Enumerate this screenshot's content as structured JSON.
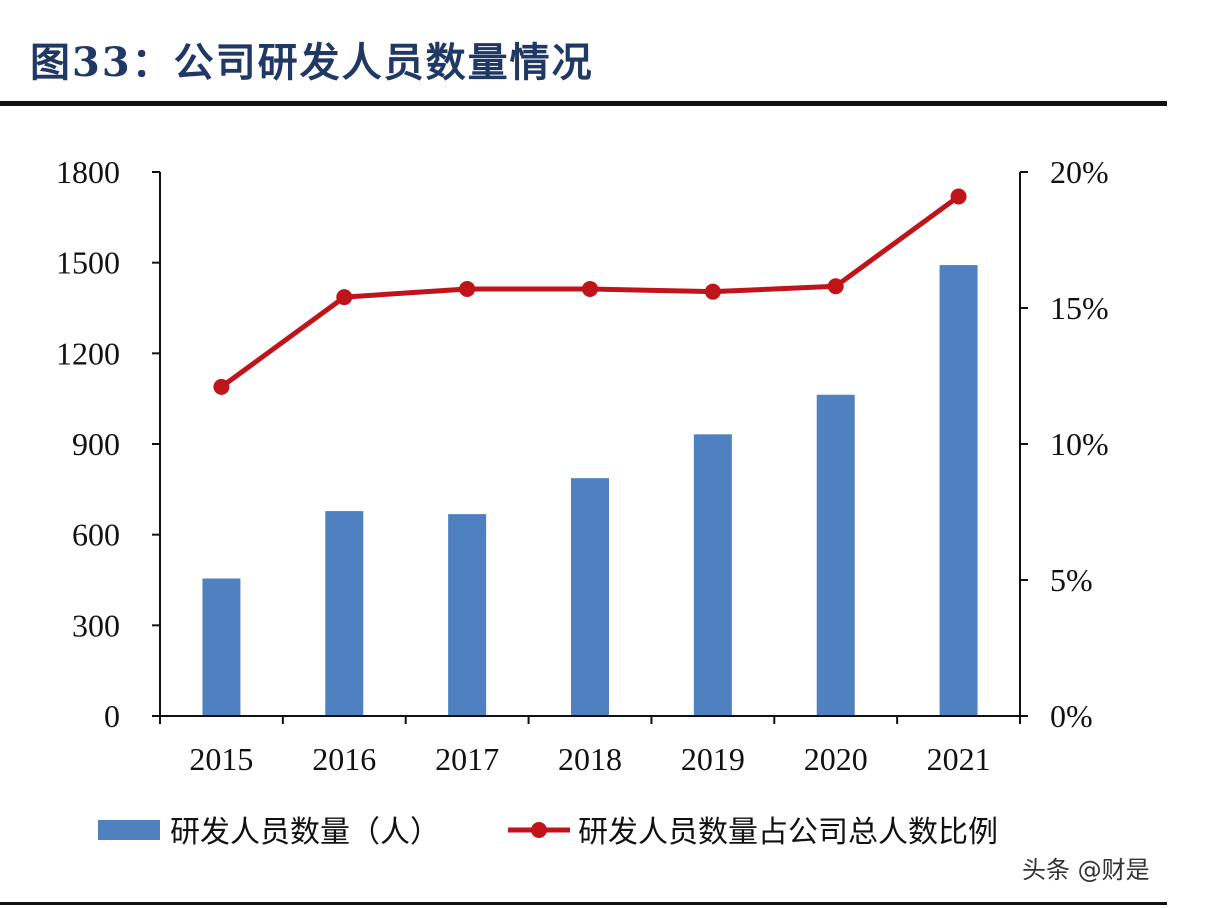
{
  "title": "图33：公司研发人员数量情况",
  "watermark": "头条 @财是",
  "colors": {
    "bar": "#4f81c1",
    "line": "#c0141b",
    "title": "#1f3864"
  },
  "chart_data": {
    "type": "bar+line",
    "categories": [
      "2015",
      "2016",
      "2017",
      "2018",
      "2019",
      "2020",
      "2021"
    ],
    "series": [
      {
        "name": "研发人员数量（人）",
        "type": "bar",
        "axis": "left",
        "values": [
          455,
          678,
          668,
          787,
          932,
          1063,
          1492
        ]
      },
      {
        "name": "研发人员数量占公司总人数比例",
        "type": "line",
        "axis": "right",
        "values": [
          12.1,
          15.4,
          15.7,
          15.7,
          15.6,
          15.8,
          19.1
        ]
      }
    ],
    "y_left": {
      "min": 0,
      "max": 1800,
      "ticks": [
        0,
        300,
        600,
        900,
        1200,
        1500,
        1800
      ],
      "tick_labels": [
        "0",
        "300",
        "600",
        "900",
        "1200",
        "1500",
        "1800"
      ]
    },
    "y_right": {
      "min": 0,
      "max": 20,
      "ticks": [
        0,
        5,
        10,
        15,
        20
      ],
      "tick_labels": [
        "0%",
        "5%",
        "10%",
        "15%",
        "20%"
      ]
    },
    "legend_position": "bottom",
    "grid": false
  }
}
